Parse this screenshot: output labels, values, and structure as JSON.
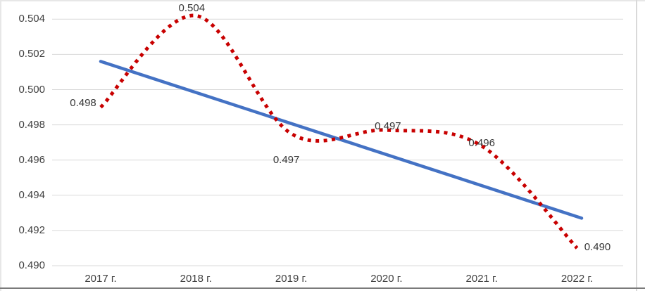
{
  "chart": {
    "title": "",
    "y_axis_ticks": [
      "0.504",
      "0.502",
      "0.500",
      "0.498",
      "0.496",
      "0.494",
      "0.492",
      "0.490"
    ],
    "x_axis_ticks": [
      "2017 г.",
      "2018 г.",
      "2019 г.",
      "2020 г.",
      "2021 г.",
      "2022 г."
    ],
    "data_labels": [
      "0.498",
      "0.504",
      "0.497",
      "0.497",
      "0.496",
      "0.490"
    ]
  },
  "chart_data": {
    "type": "line",
    "title": "",
    "categories": [
      "2017 г.",
      "2018 г.",
      "2019 г.",
      "2020 г.",
      "2021 г.",
      "2022 г."
    ],
    "series": [
      {
        "name": "value-series",
        "line_style": "square-dot",
        "color": "#c80000",
        "values": [
          0.498,
          0.504,
          0.497,
          0.497,
          0.496,
          0.49
        ],
        "values_plotted": [
          0.499,
          0.5042,
          0.4975,
          0.4977,
          0.4968,
          0.491
        ],
        "point_labels": [
          "0.498",
          "0.504",
          "0.497",
          "0.497",
          "0.496",
          "0.490"
        ]
      },
      {
        "name": "linear-trendline",
        "line_style": "solid",
        "color": "#4472c4",
        "endpoint_values": [
          0.5016,
          0.4927
        ]
      }
    ],
    "ylim": [
      0.49,
      0.504
    ],
    "ytick_step": 0.002,
    "xlabel": "",
    "ylabel": "",
    "grid": true,
    "legend": "none"
  },
  "colors": {
    "grid": "#d9d9d9",
    "axis_text": "#404040",
    "label_text": "#363636",
    "border_top": "#e7e7e7",
    "border_left": "#e7e7e7",
    "border_right": "#d9d9d9",
    "border_bottom": "#7a7a7a",
    "background": "#ffffff"
  }
}
